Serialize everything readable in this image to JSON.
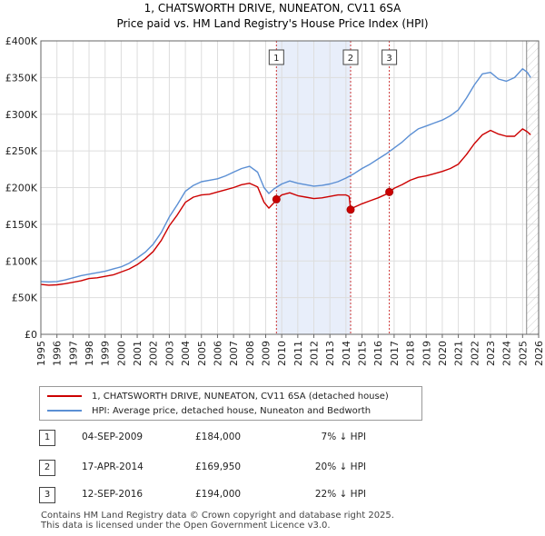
{
  "chart_data": {
    "type": "line",
    "title": "1, CHATSWORTH DRIVE, NUNEATON, CV11 6SA",
    "subtitle": "Price paid vs. HM Land Registry's House Price Index (HPI)",
    "xlabel": "",
    "ylabel": "",
    "xlim": [
      1995,
      2026
    ],
    "ylim": [
      0,
      400000
    ],
    "y_ticks": [
      {
        "value": 0,
        "label": "£0"
      },
      {
        "value": 50000,
        "label": "£50K"
      },
      {
        "value": 100000,
        "label": "£100K"
      },
      {
        "value": 150000,
        "label": "£150K"
      },
      {
        "value": 200000,
        "label": "£200K"
      },
      {
        "value": 250000,
        "label": "£250K"
      },
      {
        "value": 300000,
        "label": "£300K"
      },
      {
        "value": 350000,
        "label": "£350K"
      },
      {
        "value": 400000,
        "label": "£400K"
      }
    ],
    "x_ticks": [
      "1995",
      "1996",
      "1997",
      "1998",
      "1999",
      "2000",
      "2001",
      "2002",
      "2003",
      "2004",
      "2005",
      "2006",
      "2007",
      "2008",
      "2009",
      "2010",
      "2011",
      "2012",
      "2013",
      "2014",
      "2015",
      "2016",
      "2017",
      "2018",
      "2019",
      "2020",
      "2021",
      "2022",
      "2023",
      "2024",
      "2025",
      "2026"
    ],
    "grid": true,
    "legend_position": "below",
    "colors": {
      "property": "#cc0000",
      "hpi": "#5b8fd4",
      "band": "#e8eefa",
      "marker_line": "#cc3333",
      "grid": "#dddddd"
    },
    "series": [
      {
        "name": "1, CHATSWORTH DRIVE, NUNEATON, CV11 6SA (detached house)",
        "color": "#cc0000",
        "x": [
          1995.0,
          1995.5,
          1996.0,
          1996.5,
          1997.0,
          1997.5,
          1998.0,
          1998.5,
          1999.0,
          1999.5,
          2000.0,
          2000.5,
          2001.0,
          2001.5,
          2002.0,
          2002.5,
          2003.0,
          2003.5,
          2004.0,
          2004.5,
          2005.0,
          2005.5,
          2006.0,
          2006.5,
          2007.0,
          2007.5,
          2008.0,
          2008.5,
          2008.9,
          2009.2,
          2009.5,
          2009.67,
          2010.0,
          2010.5,
          2011.0,
          2011.5,
          2012.0,
          2012.5,
          2013.0,
          2013.5,
          2014.0,
          2014.2,
          2014.29,
          2014.5,
          2015.0,
          2015.5,
          2016.0,
          2016.5,
          2016.7,
          2017.0,
          2017.5,
          2018.0,
          2018.5,
          2019.0,
          2019.5,
          2020.0,
          2020.5,
          2021.0,
          2021.5,
          2022.0,
          2022.5,
          2023.0,
          2023.5,
          2024.0,
          2024.5,
          2025.0,
          2025.3,
          2025.5
        ],
        "values": [
          68000,
          67000,
          67500,
          69000,
          71000,
          73000,
          76000,
          77000,
          79000,
          81000,
          85000,
          89000,
          95000,
          103000,
          113000,
          128000,
          148000,
          163000,
          180000,
          187000,
          190000,
          191000,
          194000,
          197000,
          200000,
          204000,
          206000,
          201000,
          180000,
          172000,
          179000,
          184000,
          190000,
          193000,
          189000,
          187000,
          185000,
          186000,
          188000,
          190000,
          190000,
          188000,
          169950,
          173000,
          178000,
          182000,
          186000,
          191000,
          194000,
          199000,
          204000,
          210000,
          214000,
          216000,
          219000,
          222000,
          226000,
          232000,
          245000,
          260000,
          272000,
          278000,
          273000,
          270000,
          270000,
          280000,
          276000,
          272000
        ]
      },
      {
        "name": "HPI: Average price, detached house, Nuneaton and Bedworth",
        "color": "#5b8fd4",
        "x": [
          1995.0,
          1995.5,
          1996.0,
          1996.5,
          1997.0,
          1997.5,
          1998.0,
          1998.5,
          1999.0,
          1999.5,
          2000.0,
          2000.5,
          2001.0,
          2001.5,
          2002.0,
          2002.5,
          2003.0,
          2003.5,
          2004.0,
          2004.5,
          2005.0,
          2005.5,
          2006.0,
          2006.5,
          2007.0,
          2007.5,
          2008.0,
          2008.5,
          2008.9,
          2009.2,
          2009.5,
          2010.0,
          2010.5,
          2011.0,
          2011.5,
          2012.0,
          2012.5,
          2013.0,
          2013.5,
          2014.0,
          2014.5,
          2015.0,
          2015.5,
          2016.0,
          2016.5,
          2017.0,
          2017.5,
          2018.0,
          2018.5,
          2019.0,
          2019.5,
          2020.0,
          2020.5,
          2021.0,
          2021.5,
          2022.0,
          2022.5,
          2023.0,
          2023.5,
          2024.0,
          2024.5,
          2025.0,
          2025.3,
          2025.5
        ],
        "values": [
          72000,
          71500,
          72000,
          74000,
          77000,
          80000,
          82000,
          84000,
          86000,
          89000,
          92000,
          97000,
          104000,
          112000,
          123000,
          139000,
          160000,
          177000,
          195000,
          203000,
          208000,
          210000,
          212000,
          216000,
          221000,
          226000,
          229000,
          221000,
          200000,
          192000,
          198000,
          205000,
          209000,
          206000,
          204000,
          202000,
          203000,
          205000,
          208000,
          213000,
          219000,
          226000,
          232000,
          239000,
          246000,
          254000,
          262000,
          272000,
          280000,
          284000,
          288000,
          292000,
          298000,
          306000,
          322000,
          340000,
          355000,
          357000,
          348000,
          345000,
          350000,
          362000,
          357000,
          350000
        ]
      }
    ],
    "sales": [
      {
        "num": "1",
        "date": "04-SEP-2009",
        "price": "£184,000",
        "hpi": "7% ↓ HPI",
        "x": 2009.67,
        "value": 184000
      },
      {
        "num": "2",
        "date": "17-APR-2014",
        "price": "£169,950",
        "hpi": "20% ↓ HPI",
        "x": 2014.29,
        "value": 169950
      },
      {
        "num": "3",
        "date": "12-SEP-2016",
        "price": "£194,000",
        "hpi": "22% ↓ HPI",
        "x": 2016.7,
        "value": 194000
      }
    ],
    "shaded_ranges": [
      [
        2009.67,
        2014.29
      ]
    ],
    "future_from": 2025.25
  },
  "footer": {
    "line1": "Contains HM Land Registry data © Crown copyright and database right 2025.",
    "line2": "This data is licensed under the Open Government Licence v3.0."
  }
}
